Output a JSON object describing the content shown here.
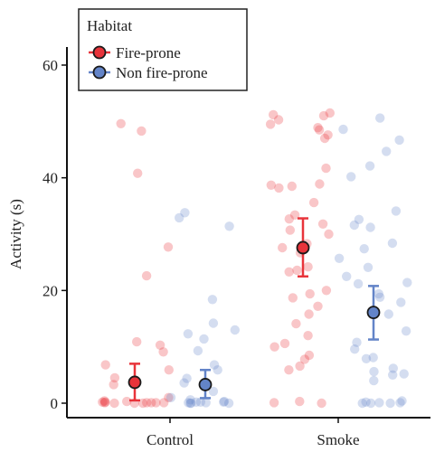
{
  "chart_data": {
    "type": "scatter",
    "title": "",
    "xlabel": "",
    "ylabel": "Activity (s)",
    "ylim": [
      -2,
      62
    ],
    "yticks": [
      0,
      20,
      40,
      60
    ],
    "grid": false,
    "legend_position": "top-left",
    "categories": [
      "Control",
      "Smoke"
    ],
    "legend_title": "Habitat",
    "series": [
      {
        "name": "Fire-prone",
        "color": "#e8343b",
        "mean": [
          3.7,
          27.6
        ],
        "error_low": [
          0.5,
          22.5
        ],
        "error_high": [
          7.0,
          32.8
        ],
        "points": {
          "Control": [
            48.3,
            49.6,
            40.8,
            27.7,
            22.6,
            10.9,
            10.3,
            9.1,
            6.8,
            5.9,
            4.5,
            3.3,
            1.0,
            0.4,
            0.3,
            0.2,
            0.2,
            0.1,
            0.1,
            0.1,
            0.1,
            0.1,
            0.0,
            0.0,
            0.0
          ],
          "Smoke": [
            51.5,
            51.2,
            51.0,
            50.3,
            49.5,
            48.9,
            48.5,
            47.6,
            47.0,
            41.7,
            38.9,
            38.7,
            38.5,
            38.2,
            35.6,
            33.4,
            32.7,
            31.8,
            30.7,
            30.0,
            28.3,
            27.6,
            26.7,
            24.2,
            23.6,
            23.3,
            20.0,
            19.4,
            18.7,
            17.2,
            15.8,
            14.1,
            12.0,
            10.6,
            10.0,
            8.5,
            7.8,
            6.6,
            5.9,
            0.3,
            0.1,
            0.0
          ]
        }
      },
      {
        "name": "Non fire-prone",
        "color": "#6384c8",
        "mean": [
          3.3,
          16.1
        ],
        "error_low": [
          0.9,
          11.3
        ],
        "error_high": [
          5.9,
          20.8
        ],
        "points": {
          "Control": [
            33.8,
            32.9,
            31.4,
            18.4,
            14.2,
            13.0,
            12.3,
            11.4,
            9.3,
            6.8,
            5.9,
            4.4,
            3.6,
            2.1,
            1.0,
            0.6,
            0.3,
            0.2,
            0.2,
            0.2,
            0.1,
            0.1,
            0.0,
            0.0,
            0.0
          ],
          "Smoke": [
            50.6,
            48.6,
            46.7,
            44.7,
            42.1,
            40.2,
            34.1,
            32.6,
            31.6,
            31.2,
            28.4,
            27.4,
            25.7,
            24.1,
            22.5,
            21.4,
            21.2,
            19.4,
            18.8,
            17.9,
            15.8,
            12.8,
            10.8,
            9.6,
            8.1,
            7.9,
            6.2,
            5.6,
            5.2,
            5.0,
            4.0,
            0.4,
            0.2,
            0.1,
            0.1,
            0.0,
            0.0,
            0.0
          ]
        }
      }
    ]
  }
}
